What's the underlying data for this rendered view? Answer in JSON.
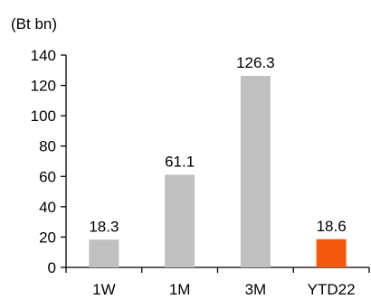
{
  "chart_data": {
    "type": "bar",
    "title": "",
    "xlabel": "",
    "ylabel": "(Bt bn)",
    "categories": [
      "1W",
      "1M",
      "3M",
      "YTD22"
    ],
    "values": [
      18.3,
      61.1,
      126.3,
      18.6
    ],
    "data_labels": [
      "18.3",
      "61.1",
      "126.3",
      "18.6"
    ],
    "bar_colors": [
      "#c0c0c0",
      "#c0c0c0",
      "#c0c0c0",
      "#f25a0f"
    ],
    "ylim": [
      0,
      140
    ],
    "yticks": [
      0,
      20,
      40,
      60,
      80,
      100,
      120,
      140
    ],
    "grid": false,
    "legend": "none"
  }
}
